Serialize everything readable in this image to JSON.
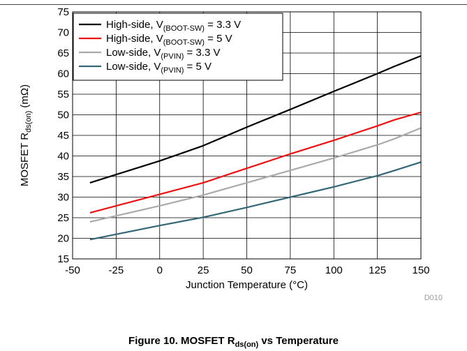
{
  "chart_data": {
    "type": "line",
    "xlabel": "Junction Temperature (°C)",
    "ylabel_main": "MOSFET R",
    "ylabel_sub": "ds(on)",
    "ylabel_unit": " (mΩ)",
    "xlim": [
      -50,
      150
    ],
    "ylim": [
      15,
      75
    ],
    "x_ticks": [
      -50,
      -25,
      0,
      25,
      50,
      75,
      100,
      125,
      150
    ],
    "y_ticks": [
      15,
      20,
      25,
      30,
      35,
      40,
      45,
      50,
      55,
      60,
      65,
      70,
      75
    ],
    "grid": true,
    "legend_position": "top-left",
    "code_label": "D010",
    "series": [
      {
        "label_main": "High-side, V",
        "label_sub": "(BOOT-SW)",
        "label_tail": " = 3.3 V",
        "color": "#000000",
        "x": [
          -40,
          0,
          25,
          50,
          75,
          100,
          125,
          135,
          150
        ],
        "y": [
          33.5,
          38.8,
          42.5,
          47.0,
          51.3,
          55.7,
          60.0,
          61.8,
          64.3
        ]
      },
      {
        "label_main": "High-side, V",
        "label_sub": "(BOOT-SW)",
        "label_tail": " = 5 V",
        "color": "#ee1111",
        "x": [
          -40,
          0,
          25,
          50,
          75,
          100,
          125,
          135,
          150
        ],
        "y": [
          26.2,
          30.7,
          33.5,
          37.0,
          40.5,
          43.8,
          47.3,
          48.8,
          50.6
        ]
      },
      {
        "label_main": "Low-side, V",
        "label_sub": "(PVIN)",
        "label_tail": " = 3.3 V",
        "color": "#aaaaaa",
        "x": [
          -40,
          0,
          25,
          50,
          75,
          100,
          125,
          135,
          150
        ],
        "y": [
          24.0,
          27.9,
          30.5,
          33.5,
          36.5,
          39.5,
          42.7,
          44.2,
          46.8
        ]
      },
      {
        "label_main": "Low-side, V",
        "label_sub": "(PVIN)",
        "label_tail": " = 5 V",
        "color": "#336677",
        "x": [
          -40,
          0,
          25,
          50,
          75,
          100,
          125,
          135,
          150
        ],
        "y": [
          19.7,
          23.1,
          25.1,
          27.5,
          30.0,
          32.5,
          35.2,
          36.5,
          38.5
        ]
      }
    ]
  },
  "caption": {
    "prefix": "Figure 10. MOSFET R",
    "sub": "ds(on)",
    "suffix": " vs Temperature"
  }
}
